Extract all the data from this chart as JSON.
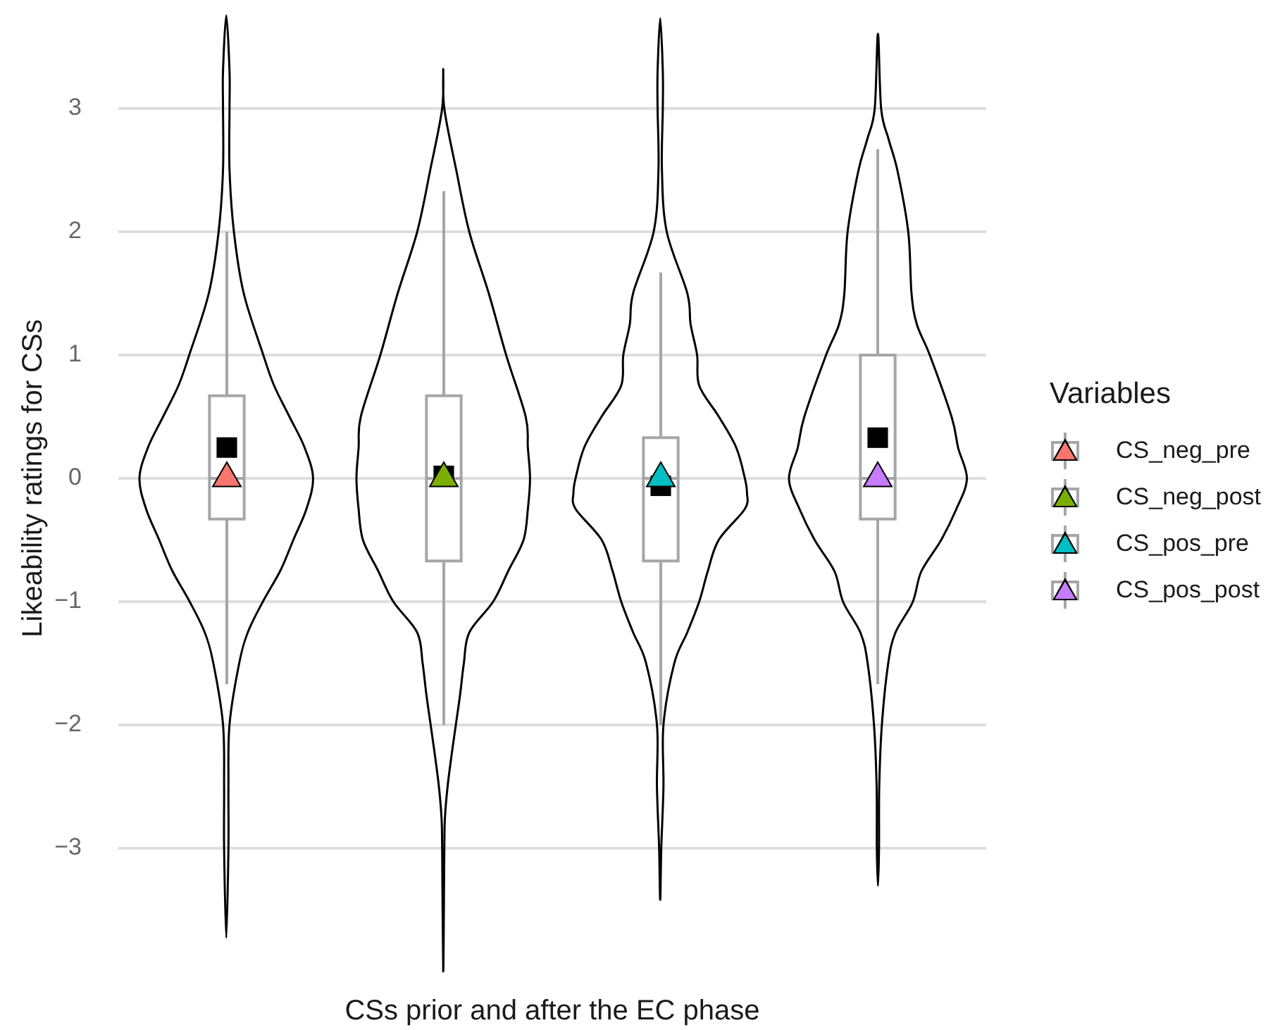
{
  "chart_data": {
    "type": "box",
    "xlabel": "CSs prior and after the EC phase",
    "ylabel": "Likeability ratings for CSs",
    "legend_title": "Variables",
    "categories": [
      null,
      null,
      null,
      null
    ],
    "color": "#a6a6a6",
    "boxes": [
      {
        "low": -1.67,
        "q1": -0.33,
        "median": 0,
        "q3": 0.67,
        "high": 2.0,
        "mean": 0.25
      },
      {
        "low": -2.0,
        "q1": -0.67,
        "median": 0,
        "q3": 0.67,
        "high": 2.33,
        "mean": 0.02
      },
      {
        "low": -2.0,
        "q1": -0.67,
        "median": 0,
        "q3": 0.33,
        "high": 1.67,
        "mean": -0.06
      },
      {
        "low": -1.67,
        "q1": -0.33,
        "median": 0,
        "q3": 1.0,
        "high": 2.67,
        "mean": 0.33
      }
    ],
    "series": [
      {
        "type": "scatter",
        "name": "CS_neg_pre",
        "color": "#f8766d",
        "marker": "triangle",
        "values": [
          0,
          null,
          null,
          null
        ]
      },
      {
        "type": "scatter",
        "name": "CS_neg_post",
        "color": "#7cae00",
        "marker": "triangle",
        "values": [
          null,
          0,
          null,
          null
        ]
      },
      {
        "type": "scatter",
        "name": "CS_pos_pre",
        "color": "#00bfc4",
        "marker": "triangle",
        "values": [
          null,
          null,
          0,
          null
        ]
      },
      {
        "type": "scatter",
        "name": "CS_pos_post",
        "color": "#c77cff",
        "marker": "triangle",
        "values": [
          null,
          null,
          null,
          0
        ]
      }
    ],
    "ylim": [
      -3,
      3
    ],
    "yticks": [
      {
        "value": -3,
        "label": "−3"
      },
      {
        "value": -2,
        "label": "−2"
      },
      {
        "value": -1,
        "label": "−1"
      },
      0,
      1,
      2,
      3
    ],
    "grid": "y",
    "legend": "right"
  }
}
